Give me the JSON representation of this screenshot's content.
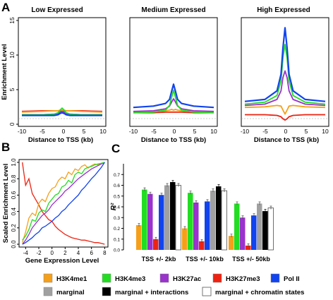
{
  "panel_labels": {
    "a": "A",
    "b": "B",
    "c": "C"
  },
  "colors": {
    "H3K4me1": "#f5a01a",
    "H3K4me3": "#22dd22",
    "H3K27ac": "#9933cc",
    "H3K27me3": "#ee2211",
    "PolII": "#1144ee",
    "marginal": "#a0a0a0",
    "marginal_interactions": "#000000",
    "marginal_chromatin": "#ffffff"
  },
  "chart_data": [
    {
      "type": "line",
      "title": "Low Expressed",
      "ylabel": "Enrichment Level",
      "xlabel": "Distance to TSS (kb)",
      "xlim": [
        -10,
        10
      ],
      "ylim": [
        0,
        15
      ],
      "xticks": [
        "-10",
        "-5",
        "0",
        "5",
        "10"
      ],
      "yticks": [
        "0",
        "5",
        "10",
        "15"
      ],
      "x": [
        -10,
        -5,
        -2,
        -1,
        -0.5,
        0,
        0.5,
        1,
        2,
        5,
        10
      ],
      "series": [
        {
          "key": "H3K4me1",
          "values": [
            1.3,
            1.4,
            1.5,
            1.5,
            1.6,
            1.6,
            1.6,
            1.5,
            1.5,
            1.4,
            1.3
          ]
        },
        {
          "key": "H3K4me3",
          "values": [
            0.9,
            0.9,
            1.0,
            1.2,
            1.6,
            1.9,
            1.6,
            1.2,
            1.0,
            0.9,
            0.9
          ]
        },
        {
          "key": "H3K27ac",
          "values": [
            0.9,
            0.9,
            1.0,
            1.1,
            1.3,
            1.4,
            1.3,
            1.1,
            1.0,
            0.9,
            0.9
          ]
        },
        {
          "key": "H3K27me3",
          "values": [
            1.4,
            1.5,
            1.5,
            1.5,
            1.5,
            1.5,
            1.5,
            1.5,
            1.5,
            1.5,
            1.4
          ]
        },
        {
          "key": "PolII",
          "values": [
            0.8,
            0.8,
            0.8,
            0.9,
            1.1,
            1.2,
            1.1,
            0.9,
            0.8,
            0.8,
            0.8
          ]
        }
      ]
    },
    {
      "type": "line",
      "title": "Medium Expressed",
      "xlabel": "Distance to TSS (kb)",
      "xlim": [
        -10,
        10
      ],
      "ylim": [
        0,
        15
      ],
      "xticks": [
        "-10",
        "-5",
        "0",
        "5",
        "10"
      ],
      "x": [
        -10,
        -5,
        -2,
        -1,
        -0.5,
        0,
        0.5,
        1,
        2,
        5,
        10
      ],
      "series": [
        {
          "key": "H3K4me1",
          "values": [
            1.3,
            1.4,
            1.5,
            1.6,
            1.7,
            1.6,
            1.7,
            1.6,
            1.5,
            1.4,
            1.3
          ]
        },
        {
          "key": "H3K4me3",
          "values": [
            1.2,
            1.3,
            1.6,
            2.3,
            3.5,
            4.6,
            3.5,
            2.3,
            1.6,
            1.3,
            1.2
          ]
        },
        {
          "key": "H3K27ac",
          "values": [
            1.4,
            1.5,
            1.8,
            2.2,
            2.8,
            3.3,
            2.8,
            2.2,
            1.8,
            1.5,
            1.4
          ]
        },
        {
          "key": "H3K27me3",
          "values": [
            1.2,
            1.2,
            1.3,
            1.3,
            1.3,
            1.3,
            1.3,
            1.3,
            1.3,
            1.2,
            1.2
          ]
        },
        {
          "key": "PolII",
          "values": [
            2.0,
            2.2,
            2.6,
            3.2,
            4.4,
            5.5,
            4.4,
            3.2,
            2.6,
            2.2,
            2.0
          ]
        }
      ]
    },
    {
      "type": "line",
      "title": "High Expressed",
      "xlabel": "Distance to TSS (kb)",
      "xlim": [
        -10,
        10
      ],
      "ylim": [
        0,
        15
      ],
      "xticks": [
        "-10",
        "-5",
        "0",
        "5",
        "10"
      ],
      "x": [
        -10,
        -5,
        -2,
        -1,
        -0.5,
        0,
        0.5,
        1,
        2,
        5,
        10
      ],
      "series": [
        {
          "key": "H3K4me1",
          "values": [
            2.0,
            2.1,
            2.3,
            2.2,
            1.6,
            1.0,
            1.6,
            2.2,
            2.3,
            2.1,
            2.0
          ]
        },
        {
          "key": "H3K4me3",
          "values": [
            2.5,
            2.8,
            3.8,
            6.0,
            9.5,
            11.5,
            9.5,
            6.0,
            3.8,
            2.8,
            2.5
          ]
        },
        {
          "key": "H3K27ac",
          "values": [
            2.3,
            2.5,
            3.2,
            4.5,
            6.5,
            7.5,
            6.5,
            4.5,
            3.2,
            2.5,
            2.3
          ]
        },
        {
          "key": "H3K27me3",
          "values": [
            0.9,
            0.9,
            0.8,
            0.6,
            0.3,
            0.1,
            0.3,
            0.6,
            0.8,
            0.9,
            0.9
          ]
        },
        {
          "key": "PolII",
          "values": [
            2.9,
            3.2,
            4.5,
            7.0,
            11.0,
            14.0,
            11.0,
            7.0,
            4.5,
            3.2,
            2.9
          ]
        }
      ]
    },
    {
      "type": "line",
      "xlabel": "Gene Expression Level",
      "ylabel": "Scaled Enrichment Level",
      "xlim": [
        -5,
        8.5
      ],
      "ylim": [
        0,
        1
      ],
      "xticks": [
        "-4",
        "-2",
        "0",
        "2",
        "4",
        "6",
        "8"
      ],
      "yticks": [
        "0.0",
        "0.2",
        "0.4",
        "0.6",
        "0.8",
        "1.0"
      ],
      "x": [
        -4.5,
        -4,
        -3.5,
        -3,
        -2.5,
        -2,
        -1.5,
        -1,
        -0.5,
        0,
        0.5,
        1,
        1.5,
        2,
        2.5,
        3,
        3.5,
        4,
        4.5,
        5,
        5.5,
        6,
        6.5,
        7,
        7.5,
        8
      ],
      "series": [
        {
          "key": "H3K4me1",
          "values": [
            0.02,
            0.15,
            0.32,
            0.38,
            0.35,
            0.5,
            0.55,
            0.52,
            0.62,
            0.68,
            0.7,
            0.78,
            0.82,
            0.8,
            0.88,
            0.85,
            0.92,
            0.9,
            0.95,
            0.97,
            0.93,
            0.96,
            0.98,
            0.97,
            0.99,
            1.0
          ]
        },
        {
          "key": "H3K4me3",
          "values": [
            0.05,
            0.1,
            0.18,
            0.3,
            0.28,
            0.38,
            0.42,
            0.4,
            0.5,
            0.55,
            0.6,
            0.62,
            0.7,
            0.72,
            0.78,
            0.75,
            0.85,
            0.88,
            0.86,
            0.92,
            0.94,
            0.95,
            0.97,
            0.98,
            0.99,
            1.0
          ]
        },
        {
          "key": "H3K27ac",
          "values": [
            0.0,
            0.05,
            0.12,
            0.2,
            0.25,
            0.3,
            0.35,
            0.38,
            0.42,
            0.48,
            0.52,
            0.56,
            0.6,
            0.65,
            0.68,
            0.72,
            0.76,
            0.8,
            0.83,
            0.86,
            0.89,
            0.92,
            0.94,
            0.96,
            0.98,
            1.0
          ]
        },
        {
          "key": "H3K27me3",
          "values": [
            1.0,
            0.72,
            0.8,
            0.62,
            0.55,
            0.48,
            0.4,
            0.35,
            0.3,
            0.28,
            0.22,
            0.18,
            0.15,
            0.12,
            0.1,
            0.08,
            0.07,
            0.06,
            0.05,
            0.05,
            0.04,
            0.03,
            0.02,
            0.02,
            0.01,
            0.0
          ]
        },
        {
          "key": "PolII",
          "values": [
            0.0,
            0.02,
            0.05,
            0.08,
            0.12,
            0.15,
            0.2,
            0.22,
            0.25,
            0.28,
            0.32,
            0.35,
            0.4,
            0.43,
            0.48,
            0.52,
            0.56,
            0.6,
            0.66,
            0.7,
            0.75,
            0.8,
            0.84,
            0.89,
            0.94,
            1.0
          ]
        }
      ]
    },
    {
      "type": "bar",
      "ylabel": "R²",
      "ylim": [
        0,
        0.8
      ],
      "yticks": [
        "0.0",
        "0.1",
        "0.2",
        "0.3",
        "0.4",
        "0.5",
        "0.6",
        "0.7"
      ],
      "categories": [
        "TSS +/- 2kb",
        "TSS +/- 10kb",
        "TSS +/- 50kb"
      ],
      "series": [
        {
          "key": "H3K4me1",
          "name": "H3K4me1",
          "values": [
            0.23,
            0.2,
            0.13
          ]
        },
        {
          "key": "H3K4me3",
          "name": "H3K4me3",
          "values": [
            0.56,
            0.53,
            0.43
          ]
        },
        {
          "key": "H3K27ac",
          "name": "H3K27ac",
          "values": [
            0.52,
            0.44,
            0.3
          ]
        },
        {
          "key": "H3K27me3",
          "name": "H3K27me3",
          "values": [
            0.1,
            0.08,
            0.04
          ]
        },
        {
          "key": "PolII",
          "name": "Pol II",
          "values": [
            0.51,
            0.45,
            0.32
          ]
        },
        {
          "key": "marginal",
          "name": "marginal",
          "values": [
            0.6,
            0.55,
            0.43
          ]
        },
        {
          "key": "marginal_interactions",
          "name": "marginal + interactions",
          "values": [
            0.63,
            0.59,
            0.36
          ]
        },
        {
          "key": "marginal_chromatin",
          "name": "marginal + chromatin states",
          "values": [
            0.6,
            0.55,
            0.39
          ]
        }
      ],
      "legend_position": "bottom"
    }
  ]
}
